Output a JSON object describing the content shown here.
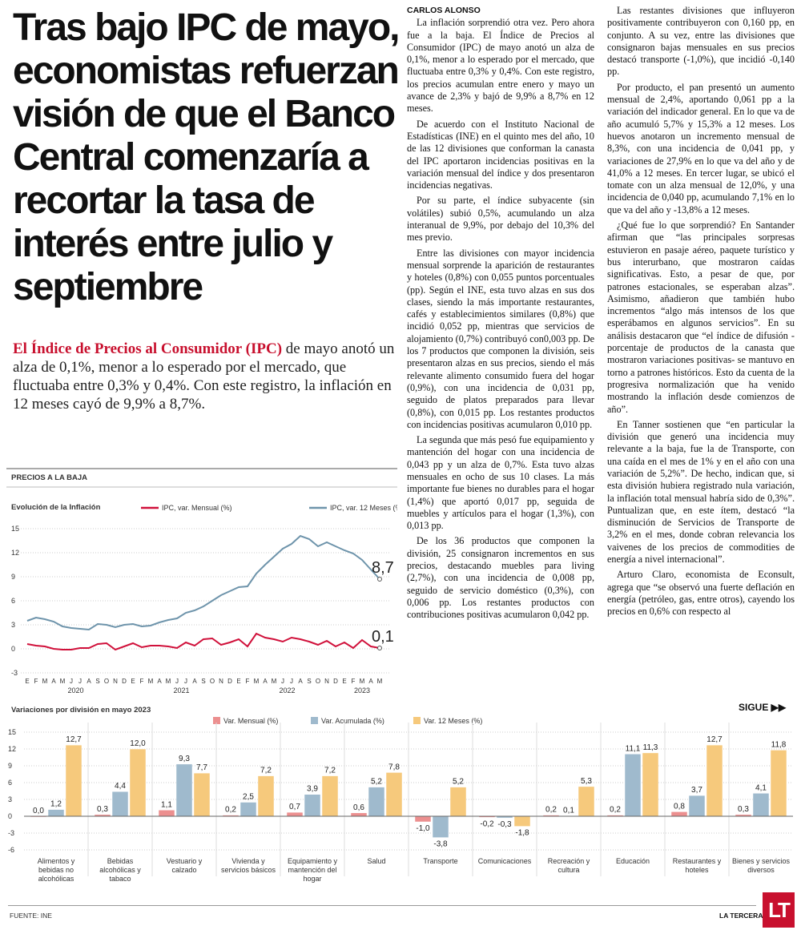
{
  "headline": "Tras bajo IPC de mayo, economistas refuerzan visión de que el Banco Central comenzaría a recortar la tasa de interés entre julio y septiembre",
  "lead": {
    "highlight": "El Índice de Precios al Consumidor (IPC)",
    "text": "de mayo anotó un alza de 0,1%, menor a lo esperado por el mercado, que fluctuaba entre 0,3% y 0,4%. Con este registro, la inflación en 12 meses cayó de 9,9% a 8,7%."
  },
  "article": {
    "byline": "CARLOS ALONSO",
    "paragraphs": [
      "La inflación sorprendió otra vez. Pero ahora fue a la baja. El Índice de Precios al Consumidor (IPC) de mayo anotó un alza de 0,1%, menor a lo esperado por el mercado, que fluctuaba entre 0,3% y 0,4%. Con este registro, los precios acumulan entre enero y mayo un avance de 2,3% y bajó de 9,9% a 8,7% en 12 meses.",
      "De acuerdo con el Instituto Nacional de Estadísticas (INE) en el quinto mes del año, 10 de las 12 divisiones que conforman la canasta del IPC aportaron incidencias positivas en la variación mensual del índice y dos presentaron incidencias negativas.",
      "Por su parte, el índice subyacente (sin volátiles) subió 0,5%, acumulando un alza interanual de 9,9%, por debajo del 10,3% del mes previo.",
      "Entre las divisiones con mayor incidencia mensual sorprende la aparición de restaurantes y hoteles (0,8%) con 0,055 puntos porcentuales (pp). Según el INE, esta tuvo alzas en sus dos clases, siendo la más importante restaurantes, cafés y establecimientos similares (0,8%) que incidió 0,052 pp, mientras que servicios de alojamiento (0,7%) contribuyó con0,003 pp. De los 7 productos que componen la división, seis presentaron alzas en sus precios, siendo el más relevante alimento consumido fuera del hogar (0,9%), con una incidencia de 0,031 pp, seguido de platos preparados para llevar (0,8%), con 0,015 pp. Los restantes productos con incidencias positivas acumularon 0,010 pp.",
      "La segunda que más pesó fue equipamiento y mantención del hogar con una incidencia de 0,043 pp y un alza de 0,7%. Esta tuvo alzas mensuales en ocho de sus 10 clases. La más importante fue bienes no durables para el hogar (1,4%) que aportó 0,017 pp, seguida de muebles y artículos para el hogar (1,3%), con 0,013 pp.",
      "De los 36 productos que componen la división, 25 consignaron incrementos en sus precios, destacando muebles para living (2,7%), con una incidencia de 0,008 pp, seguido de servicio doméstico (0,3%), con 0,006 pp. Los restantes productos con contribuciones positivas acumularon 0,042 pp.",
      "Las restantes divisiones que influyeron positivamente contribuyeron con 0,160 pp, en conjunto. A su vez, entre las divisiones que consignaron bajas mensuales en sus precios destacó transporte (-1,0%), que incidió -0,140 pp.",
      "Por producto, el pan presentó un aumento mensual de 2,4%, aportando 0,061 pp a la variación del indicador general. En lo que va de año acumuló 5,7% y 15,3% a 12 meses. Los huevos anotaron un incremento mensual de 8,3%, con una incidencia de 0,041 pp, y variaciones de 27,9% en lo que va del año y de 41,0% a 12 meses. En tercer lugar, se ubicó el tomate con un alza mensual de 12,0%, y una incidencia de 0,040 pp, acumulando 7,1% en lo que va del año y -13,8% a 12 meses.",
      "¿Qué fue lo que sorprendió? En Santander afirman que “las principales sorpresas estuvieron en pasaje aéreo, paquete turístico y bus interurbano, que mostraron caídas significativas. Esto, a pesar de que, por patrones estacionales, se esperaban alzas”. Asimismo, añadieron que también hubo incrementos “algo más intensos de los que esperábamos en algunos servicios”. En su análisis destacaron que “el índice de difusión -porcentaje de productos de la canasta que mostraron variaciones positivas- se mantuvo en torno a patrones históricos. Esto da cuenta de la progresiva normalización que ha venido mostrando la inflación desde comienzos de año”.",
      "En Tanner sostienen que “en particular la división que generó una incidencia muy relevante a la baja, fue la de Transporte, con una caída en el mes de 1% y en el año con una variación de 5,2%”. De hecho, indican que, si esta división hubiera registrado nula variación, la inflación total mensual habría sido de 0,3%”. Puntualizan que, en este ítem, destacó “la disminución de Servicios de Transporte de 3,2% en el mes, donde cobran relevancia los vaivenes de los precios de commodities de energía a nivel internacional”.",
      "Arturo Claro, economista de Econsult, agrega que “se observó una fuerte deflación en energía (petróleo, gas, entre otros), cayendo los precios en 0,6% con respecto al"
    ],
    "continues": "SIGUE ▶▶"
  },
  "graphic": {
    "title": "PRECIOS A LA BAJA",
    "source": "FUENTE: INE"
  },
  "footer": {
    "brand": "LA TERCERA",
    "logo": "LT"
  },
  "chart_data": [
    {
      "type": "line",
      "title": "Evolución de la Inflación",
      "categories": [
        "E",
        "F",
        "M",
        "A",
        "M",
        "J",
        "J",
        "A",
        "S",
        "O",
        "N",
        "D",
        "E",
        "F",
        "M",
        "A",
        "M",
        "J",
        "J",
        "A",
        "S",
        "O",
        "N",
        "D",
        "E",
        "F",
        "M",
        "A",
        "M",
        "J",
        "J",
        "A",
        "S",
        "O",
        "N",
        "D",
        "E",
        "F",
        "M",
        "A",
        "M"
      ],
      "year_labels": [
        "2020",
        "2021",
        "2022",
        "2023"
      ],
      "series": [
        {
          "name": "IPC, var. Mensual (%)",
          "color": "#d0103a",
          "values": [
            0.6,
            0.4,
            0.3,
            0.0,
            -0.1,
            -0.1,
            0.1,
            0.1,
            0.6,
            0.7,
            -0.1,
            0.3,
            0.7,
            0.2,
            0.4,
            0.4,
            0.3,
            0.1,
            0.8,
            0.4,
            1.2,
            1.3,
            0.5,
            0.8,
            1.2,
            0.3,
            1.9,
            1.4,
            1.2,
            0.9,
            1.4,
            1.2,
            0.9,
            0.5,
            1.0,
            0.3,
            0.8,
            0.1,
            1.1,
            0.3,
            0.1
          ],
          "value_labels": [
            null,
            null,
            null,
            null,
            null,
            null,
            null,
            null,
            null,
            null,
            null,
            null,
            null,
            null,
            null,
            null,
            null,
            null,
            null,
            null,
            null,
            null,
            null,
            null,
            null,
            null,
            null,
            null,
            null,
            null,
            null,
            null,
            null,
            null,
            null,
            null,
            null,
            null,
            null,
            null,
            "0,1"
          ]
        },
        {
          "name": "IPC, var. 12 Meses (%)",
          "color": "#6e94ab",
          "values": [
            3.5,
            3.9,
            3.7,
            3.4,
            2.8,
            2.6,
            2.5,
            2.4,
            3.1,
            3.0,
            2.7,
            3.0,
            3.1,
            2.8,
            2.9,
            3.3,
            3.6,
            3.8,
            4.5,
            4.8,
            5.3,
            6.0,
            6.7,
            7.2,
            7.7,
            7.8,
            9.4,
            10.5,
            11.5,
            12.5,
            13.1,
            14.1,
            13.7,
            12.8,
            13.3,
            12.8,
            12.3,
            11.9,
            11.1,
            9.9,
            8.7
          ],
          "value_labels": [
            null,
            null,
            null,
            null,
            null,
            null,
            null,
            null,
            null,
            null,
            null,
            null,
            null,
            null,
            null,
            null,
            null,
            null,
            null,
            null,
            null,
            null,
            null,
            null,
            null,
            null,
            null,
            null,
            null,
            null,
            null,
            null,
            null,
            null,
            null,
            null,
            null,
            null,
            null,
            null,
            "8,7"
          ]
        }
      ],
      "ylim": [
        -3,
        15
      ],
      "yticks": [
        15,
        12,
        9,
        6,
        3,
        0,
        -3
      ],
      "grid": true
    },
    {
      "type": "bar",
      "title": "Variaciones por división en mayo 2023",
      "categories": [
        "Alimentos y bebidas no alcohólicas",
        "Bebidas alcohólicas y tabaco",
        "Vestuario y calzado",
        "Vivienda y servicios básicos",
        "Equipamiento y mantención del hogar",
        "Salud",
        "Transporte",
        "Comunicaciones",
        "Recreación y cultura",
        "Educación",
        "Restaurantes y hoteles",
        "Bienes y servicios diversos"
      ],
      "series": [
        {
          "name": "Var. Mensual (%)",
          "color": "#ec8f8f",
          "values": [
            0.0,
            0.3,
            1.1,
            0.2,
            0.7,
            0.6,
            -1.0,
            -0.2,
            0.2,
            0.2,
            0.8,
            0.3
          ],
          "value_labels": [
            "0,0",
            "0,3",
            "1,1",
            "0,2",
            "0,7",
            "0,6",
            "-1,0",
            "-0,2",
            "0,2",
            "0,2",
            "0,8",
            "0,3"
          ]
        },
        {
          "name": "Var. Acumulada (%)",
          "color": "#9fbacd",
          "values": [
            1.2,
            4.4,
            9.3,
            2.5,
            3.9,
            5.2,
            -3.8,
            -0.3,
            0.1,
            11.1,
            3.7,
            4.1
          ],
          "value_labels": [
            "1,2",
            "4,4",
            "9,3",
            "2,5",
            "3,9",
            "5,2",
            "-3,8",
            "-0,3",
            "0,1",
            "11,1",
            "3,7",
            "4,1"
          ]
        },
        {
          "name": "Var. 12 Meses (%)",
          "color": "#f6c97c",
          "values": [
            12.7,
            12.0,
            7.7,
            7.2,
            7.2,
            7.8,
            5.2,
            -1.8,
            5.3,
            11.3,
            12.7,
            11.8
          ],
          "value_labels": [
            "12,7",
            "12,0",
            "7,7",
            "7,2",
            "7,2",
            "7,8",
            "5,2",
            "-1,8",
            "5,3",
            "11,3",
            "12,7",
            "11,8"
          ]
        }
      ],
      "ylim": [
        -6,
        15
      ],
      "yticks": [
        15,
        12,
        9,
        6,
        3,
        0,
        -3,
        -6
      ],
      "grid": true
    }
  ]
}
